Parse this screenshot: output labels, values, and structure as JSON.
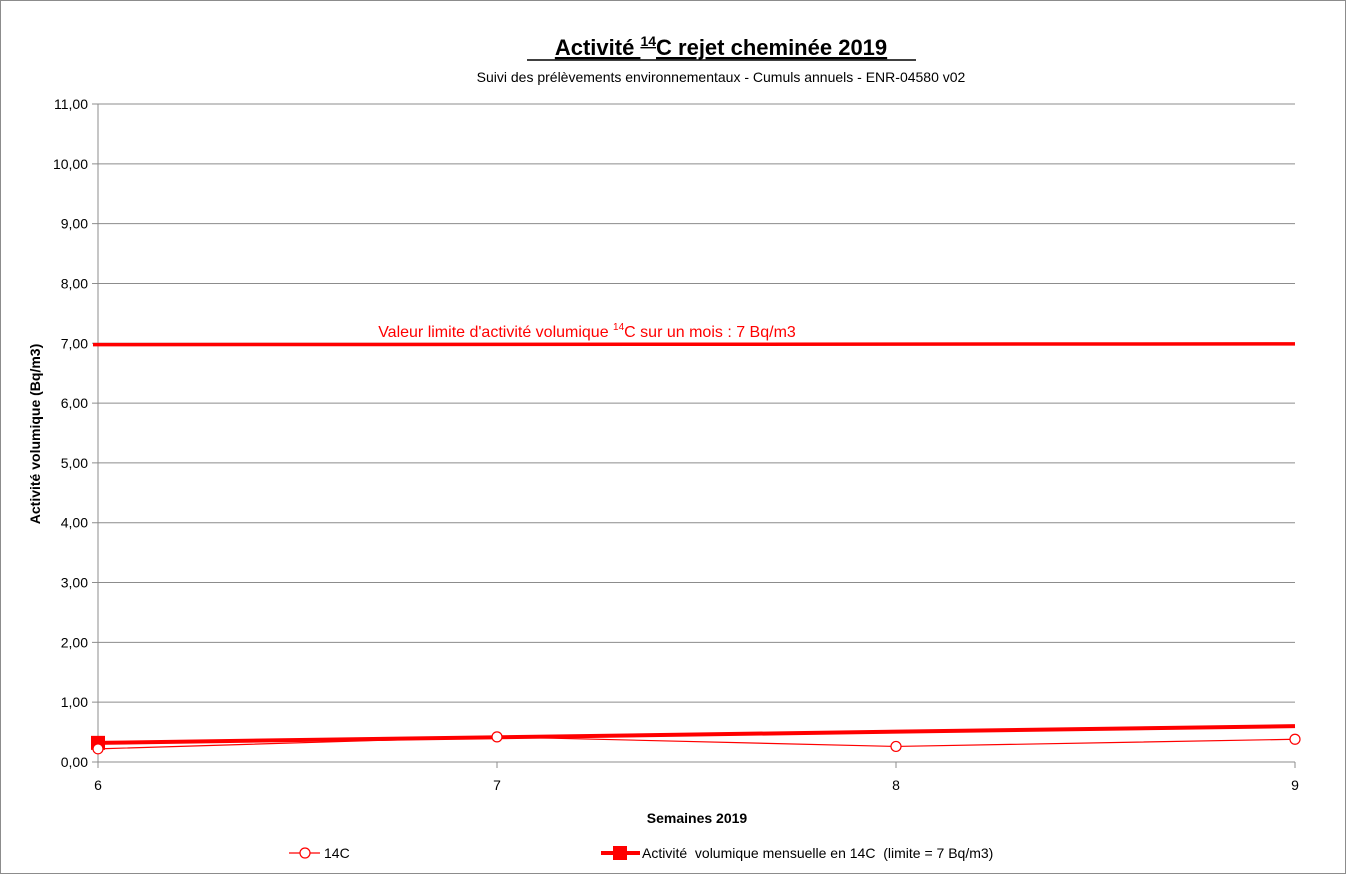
{
  "chart_data": {
    "type": "line",
    "title_main": "Activité ",
    "title_sup": "14",
    "title_rest": "C rejet cheminée 2019",
    "subtitle": "Suivi des prélèvements environnementaux - Cumuls annuels - ENR-04580 v02",
    "xlabel": "Semaines 2019",
    "ylabel": "Activité volumique (Bq/m3)",
    "x": [
      6,
      7,
      8,
      9
    ],
    "xlim": [
      6,
      9
    ],
    "ylim": [
      0,
      11
    ],
    "ytick_step": 1,
    "ytick_labels": [
      "0,00",
      "1,00",
      "2,00",
      "3,00",
      "4,00",
      "5,00",
      "6,00",
      "7,00",
      "8,00",
      "9,00",
      "10,00",
      "11,00"
    ],
    "xtick_labels": [
      "6",
      "7",
      "8",
      "9"
    ],
    "grid": true,
    "legend_position": "bottom",
    "series": [
      {
        "name": "14C",
        "values": [
          0.22,
          0.42,
          0.26,
          0.38
        ],
        "color": "#ff0000",
        "marker": "open-circle",
        "line": "thin"
      },
      {
        "name": "Activité  volumique mensuelle en 14C  (limite = 7 Bq/m3)",
        "x": [
          6,
          9
        ],
        "values": [
          0.32,
          0.6
        ],
        "color": "#ff0000",
        "marker": "filled-square-start",
        "line": "thick"
      }
    ],
    "limit_line": {
      "value": 6.96,
      "color": "#ff0000"
    },
    "annotation": {
      "text_before": "Valeur limite d'activité volumique ",
      "sup": "14",
      "text_after": "C sur un mois : 7 Bq/m3",
      "color": "#ff0000"
    }
  }
}
